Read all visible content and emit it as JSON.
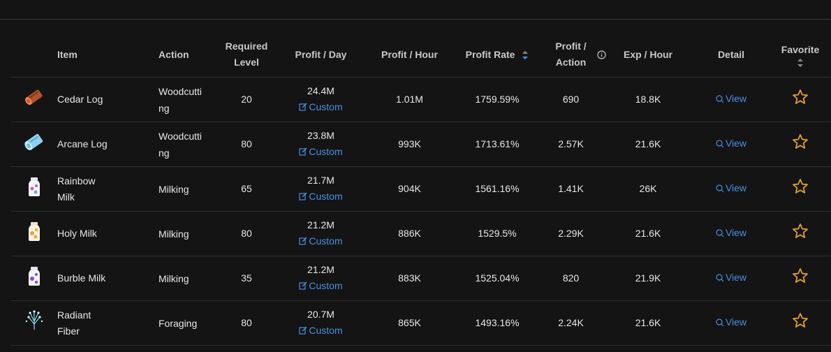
{
  "headers": {
    "item": "Item",
    "action": "Action",
    "required_level": "Required Level",
    "profit_day": "Profit / Day",
    "profit_hour": "Profit / Hour",
    "profit_rate": "Profit Rate",
    "profit_action": "Profit / Action",
    "exp_hour": "Exp / Hour",
    "detail": "Detail",
    "favorite": "Favorite"
  },
  "rows": [
    {
      "icon": "cedar-log-icon",
      "name": "Cedar Log",
      "action": "Woodcutting",
      "level": "20",
      "profit_day": "24.4M",
      "custom": "Custom",
      "profit_hour": "1.01M",
      "profit_rate": "1759.59%",
      "profit_action": "690",
      "exp_hour": "18.8K",
      "view": "View"
    },
    {
      "icon": "arcane-log-icon",
      "name": "Arcane Log",
      "action": "Woodcutting",
      "level": "80",
      "profit_day": "23.8M",
      "custom": "Custom",
      "profit_hour": "993K",
      "profit_rate": "1713.61%",
      "profit_action": "2.57K",
      "exp_hour": "21.6K",
      "view": "View"
    },
    {
      "icon": "rainbow-milk-icon",
      "name": "Rainbow Milk",
      "action": "Milking",
      "level": "65",
      "profit_day": "21.7M",
      "custom": "Custom",
      "profit_hour": "904K",
      "profit_rate": "1561.16%",
      "profit_action": "1.41K",
      "exp_hour": "26K",
      "view": "View"
    },
    {
      "icon": "holy-milk-icon",
      "name": "Holy Milk",
      "action": "Milking",
      "level": "80",
      "profit_day": "21.2M",
      "custom": "Custom",
      "profit_hour": "886K",
      "profit_rate": "1529.5%",
      "profit_action": "2.29K",
      "exp_hour": "21.6K",
      "view": "View"
    },
    {
      "icon": "burble-milk-icon",
      "name": "Burble Milk",
      "action": "Milking",
      "level": "35",
      "profit_day": "21.2M",
      "custom": "Custom",
      "profit_hour": "883K",
      "profit_rate": "1525.04%",
      "profit_action": "820",
      "exp_hour": "21.9K",
      "view": "View"
    },
    {
      "icon": "radiant-fiber-icon",
      "name": "Radiant Fiber",
      "action": "Foraging",
      "level": "80",
      "profit_day": "20.7M",
      "custom": "Custom",
      "profit_hour": "865K",
      "profit_rate": "1493.16%",
      "profit_action": "2.24K",
      "exp_hour": "21.6K",
      "view": "View"
    }
  ],
  "colors": {
    "accent": "#4a90e2",
    "star": "#e0a030",
    "background": "#141414"
  }
}
